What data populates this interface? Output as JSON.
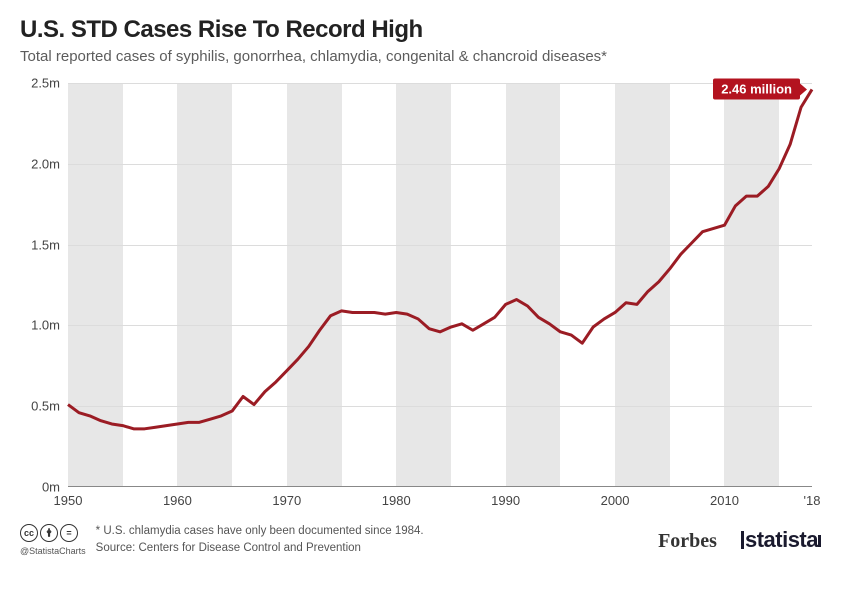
{
  "header": {
    "title": "U.S. STD Cases Rise To Record High",
    "subtitle": "Total reported cases of syphilis, gonorrhea, chlamydia, congenital & chancroid diseases*"
  },
  "chart": {
    "type": "line",
    "line_color": "#9b1c24",
    "line_width": 3,
    "background_color": "#ffffff",
    "band_color": "#e7e7e7",
    "grid_color": "#dcdcdc",
    "xlim": [
      1950,
      2018
    ],
    "ylim": [
      0,
      2.5
    ],
    "xticks": [
      {
        "v": 1950,
        "label": "1950"
      },
      {
        "v": 1960,
        "label": "1960"
      },
      {
        "v": 1970,
        "label": "1970"
      },
      {
        "v": 1980,
        "label": "1980"
      },
      {
        "v": 1990,
        "label": "1990"
      },
      {
        "v": 2000,
        "label": "2000"
      },
      {
        "v": 2010,
        "label": "2010"
      },
      {
        "v": 2018,
        "label": "'18"
      }
    ],
    "yticks": [
      {
        "v": 0.0,
        "label": "0m"
      },
      {
        "v": 0.5,
        "label": "0.5m"
      },
      {
        "v": 1.0,
        "label": "1.0m"
      },
      {
        "v": 1.5,
        "label": "1.5m"
      },
      {
        "v": 2.0,
        "label": "2.0m"
      },
      {
        "v": 2.5,
        "label": "2.5m"
      }
    ],
    "bands": [
      {
        "start": 1950,
        "end": 1955,
        "shaded": true
      },
      {
        "start": 1955,
        "end": 1960,
        "shaded": false
      },
      {
        "start": 1960,
        "end": 1965,
        "shaded": true
      },
      {
        "start": 1965,
        "end": 1970,
        "shaded": false
      },
      {
        "start": 1970,
        "end": 1975,
        "shaded": true
      },
      {
        "start": 1975,
        "end": 1980,
        "shaded": false
      },
      {
        "start": 1980,
        "end": 1985,
        "shaded": true
      },
      {
        "start": 1985,
        "end": 1990,
        "shaded": false
      },
      {
        "start": 1990,
        "end": 1995,
        "shaded": true
      },
      {
        "start": 1995,
        "end": 2000,
        "shaded": false
      },
      {
        "start": 2000,
        "end": 2005,
        "shaded": true
      },
      {
        "start": 2005,
        "end": 2010,
        "shaded": false
      },
      {
        "start": 2010,
        "end": 2015,
        "shaded": true
      },
      {
        "start": 2015,
        "end": 2018,
        "shaded": false
      }
    ],
    "callout": {
      "year": 2018,
      "value": 2.46,
      "label": "2.46 million"
    },
    "data": [
      {
        "x": 1950,
        "y": 0.51
      },
      {
        "x": 1951,
        "y": 0.46
      },
      {
        "x": 1952,
        "y": 0.44
      },
      {
        "x": 1953,
        "y": 0.41
      },
      {
        "x": 1954,
        "y": 0.39
      },
      {
        "x": 1955,
        "y": 0.38
      },
      {
        "x": 1956,
        "y": 0.36
      },
      {
        "x": 1957,
        "y": 0.36
      },
      {
        "x": 1958,
        "y": 0.37
      },
      {
        "x": 1959,
        "y": 0.38
      },
      {
        "x": 1960,
        "y": 0.39
      },
      {
        "x": 1961,
        "y": 0.4
      },
      {
        "x": 1962,
        "y": 0.4
      },
      {
        "x": 1963,
        "y": 0.42
      },
      {
        "x": 1964,
        "y": 0.44
      },
      {
        "x": 1965,
        "y": 0.47
      },
      {
        "x": 1966,
        "y": 0.56
      },
      {
        "x": 1967,
        "y": 0.51
      },
      {
        "x": 1968,
        "y": 0.59
      },
      {
        "x": 1969,
        "y": 0.65
      },
      {
        "x": 1970,
        "y": 0.72
      },
      {
        "x": 1971,
        "y": 0.79
      },
      {
        "x": 1972,
        "y": 0.87
      },
      {
        "x": 1973,
        "y": 0.97
      },
      {
        "x": 1974,
        "y": 1.06
      },
      {
        "x": 1975,
        "y": 1.09
      },
      {
        "x": 1976,
        "y": 1.08
      },
      {
        "x": 1977,
        "y": 1.08
      },
      {
        "x": 1978,
        "y": 1.08
      },
      {
        "x": 1979,
        "y": 1.07
      },
      {
        "x": 1980,
        "y": 1.08
      },
      {
        "x": 1981,
        "y": 1.07
      },
      {
        "x": 1982,
        "y": 1.04
      },
      {
        "x": 1983,
        "y": 0.98
      },
      {
        "x": 1984,
        "y": 0.96
      },
      {
        "x": 1985,
        "y": 0.99
      },
      {
        "x": 1986,
        "y": 1.01
      },
      {
        "x": 1987,
        "y": 0.97
      },
      {
        "x": 1988,
        "y": 1.01
      },
      {
        "x": 1989,
        "y": 1.05
      },
      {
        "x": 1990,
        "y": 1.13
      },
      {
        "x": 1991,
        "y": 1.16
      },
      {
        "x": 1992,
        "y": 1.12
      },
      {
        "x": 1993,
        "y": 1.05
      },
      {
        "x": 1994,
        "y": 1.01
      },
      {
        "x": 1995,
        "y": 0.96
      },
      {
        "x": 1996,
        "y": 0.94
      },
      {
        "x": 1997,
        "y": 0.89
      },
      {
        "x": 1998,
        "y": 0.99
      },
      {
        "x": 1999,
        "y": 1.04
      },
      {
        "x": 2000,
        "y": 1.08
      },
      {
        "x": 2001,
        "y": 1.14
      },
      {
        "x": 2002,
        "y": 1.13
      },
      {
        "x": 2003,
        "y": 1.21
      },
      {
        "x": 2004,
        "y": 1.27
      },
      {
        "x": 2005,
        "y": 1.35
      },
      {
        "x": 2006,
        "y": 1.44
      },
      {
        "x": 2007,
        "y": 1.51
      },
      {
        "x": 2008,
        "y": 1.58
      },
      {
        "x": 2009,
        "y": 1.6
      },
      {
        "x": 2010,
        "y": 1.62
      },
      {
        "x": 2011,
        "y": 1.74
      },
      {
        "x": 2012,
        "y": 1.8
      },
      {
        "x": 2013,
        "y": 1.8
      },
      {
        "x": 2014,
        "y": 1.86
      },
      {
        "x": 2015,
        "y": 1.97
      },
      {
        "x": 2016,
        "y": 2.12
      },
      {
        "x": 2017,
        "y": 2.35
      },
      {
        "x": 2018,
        "y": 2.46
      }
    ]
  },
  "footer": {
    "handle": "@StatistaCharts",
    "note": "* U.S. chlamydia cases have only been documented since 1984.",
    "source": "Source: Centers for Disease Control and Prevention",
    "brand1": "Forbes",
    "brand2": "statista"
  }
}
